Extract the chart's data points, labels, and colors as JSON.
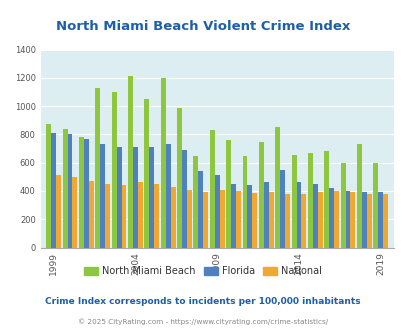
{
  "title": "North Miami Beach Violent Crime Index",
  "subtitle": "Crime Index corresponds to incidents per 100,000 inhabitants",
  "footer": "© 2025 CityRating.com - https://www.cityrating.com/crime-statistics/",
  "years": [
    1999,
    2000,
    2001,
    2002,
    2003,
    2004,
    2005,
    2006,
    2007,
    2008,
    2009,
    2010,
    2011,
    2012,
    2013,
    2014,
    2015,
    2016,
    2017,
    2018,
    2019
  ],
  "nmb": [
    870,
    840,
    780,
    1130,
    1100,
    1210,
    1050,
    1200,
    985,
    650,
    830,
    760,
    650,
    745,
    850,
    655,
    670,
    685,
    600,
    730,
    600
  ],
  "florida": [
    810,
    800,
    770,
    730,
    710,
    710,
    710,
    730,
    690,
    540,
    510,
    450,
    440,
    460,
    545,
    460,
    450,
    420,
    400,
    395,
    390
  ],
  "national": [
    510,
    500,
    470,
    450,
    440,
    465,
    450,
    430,
    405,
    395,
    405,
    400,
    385,
    390,
    375,
    375,
    390,
    400,
    395,
    380,
    380
  ],
  "nmb_color": "#8dc63f",
  "florida_color": "#4f81bd",
  "national_color": "#f0a830",
  "bg_color": "#ddeef2",
  "ylim": [
    0,
    1400
  ],
  "yticks": [
    0,
    200,
    400,
    600,
    800,
    1000,
    1200,
    1400
  ],
  "xtick_years": [
    1999,
    2004,
    2009,
    2014,
    2019
  ],
  "title_color": "#1f5fa6",
  "subtitle_color": "#1f5fa6",
  "footer_color": "#888888",
  "legend_labels": [
    "North Miami Beach",
    "Florida",
    "National"
  ]
}
